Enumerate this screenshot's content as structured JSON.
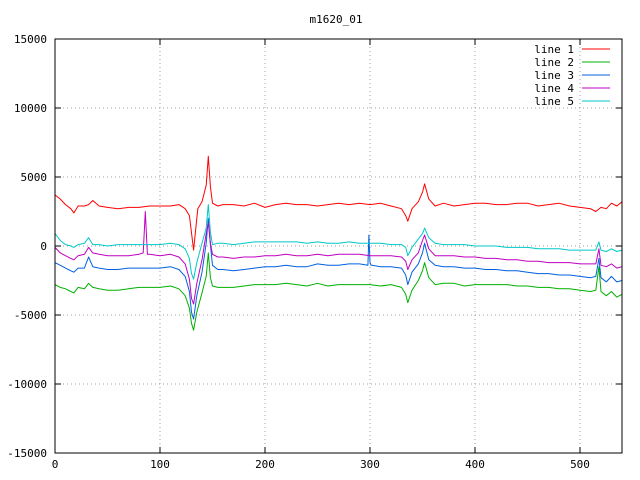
{
  "chart_data": {
    "type": "line",
    "title": "m1620_01",
    "xlabel": "",
    "ylabel": "",
    "xlim": [
      0,
      540
    ],
    "ylim": [
      -15000,
      15000
    ],
    "xticks": [
      0,
      100,
      200,
      300,
      400,
      500
    ],
    "yticks": [
      -15000,
      -10000,
      -5000,
      0,
      5000,
      10000,
      15000
    ],
    "grid": true,
    "legend_position": "top-right",
    "series": [
      {
        "name": "line 1",
        "color": "#ff0000",
        "x": [
          0,
          5,
          10,
          15,
          18,
          22,
          28,
          32,
          36,
          42,
          50,
          60,
          70,
          80,
          90,
          100,
          110,
          118,
          124,
          128,
          132,
          136,
          140,
          144,
          146,
          148,
          150,
          155,
          160,
          170,
          180,
          190,
          200,
          210,
          220,
          230,
          240,
          250,
          260,
          270,
          280,
          290,
          300,
          310,
          320,
          330,
          334,
          336,
          340,
          346,
          350,
          352,
          356,
          362,
          370,
          380,
          390,
          400,
          410,
          420,
          430,
          440,
          450,
          460,
          470,
          480,
          490,
          500,
          510,
          515,
          520,
          525,
          530,
          535,
          540
        ],
        "values": [
          3700,
          3400,
          3000,
          2700,
          2400,
          2900,
          2900,
          3000,
          3300,
          2900,
          2800,
          2700,
          2800,
          2800,
          2900,
          2900,
          2900,
          3000,
          2700,
          2200,
          -300,
          2700,
          3200,
          4400,
          6500,
          4300,
          3100,
          2900,
          3000,
          3000,
          2900,
          3100,
          2800,
          3000,
          3100,
          3000,
          3000,
          2900,
          3000,
          3100,
          3000,
          3100,
          3000,
          3100,
          2900,
          2700,
          2200,
          1800,
          2700,
          3200,
          3900,
          4500,
          3400,
          2900,
          3100,
          2900,
          3000,
          3100,
          3100,
          3000,
          3000,
          3100,
          3100,
          2900,
          3000,
          3100,
          2900,
          2800,
          2700,
          2500,
          2800,
          2700,
          3100,
          2900,
          3200
        ]
      },
      {
        "name": "line 2",
        "color": "#00b000",
        "x": [
          0,
          5,
          10,
          15,
          18,
          22,
          28,
          32,
          36,
          42,
          50,
          60,
          70,
          80,
          90,
          100,
          110,
          118,
          124,
          128,
          130,
          132,
          135,
          140,
          144,
          146,
          148,
          150,
          155,
          160,
          170,
          180,
          190,
          200,
          210,
          220,
          230,
          240,
          250,
          260,
          270,
          280,
          290,
          300,
          310,
          320,
          330,
          334,
          336,
          340,
          346,
          350,
          352,
          356,
          362,
          370,
          380,
          390,
          400,
          410,
          420,
          430,
          440,
          450,
          460,
          470,
          480,
          490,
          500,
          510,
          515,
          518,
          520,
          525,
          530,
          535,
          540
        ],
        "values": [
          -2800,
          -3000,
          -3100,
          -3300,
          -3400,
          -3000,
          -3100,
          -2700,
          -3000,
          -3100,
          -3200,
          -3200,
          -3100,
          -3000,
          -3000,
          -3000,
          -2900,
          -3100,
          -3600,
          -4500,
          -5600,
          -6100,
          -4800,
          -3400,
          -2200,
          -500,
          -2300,
          -2900,
          -3000,
          -3000,
          -3000,
          -2900,
          -2800,
          -2800,
          -2800,
          -2700,
          -2800,
          -2900,
          -2700,
          -2900,
          -2800,
          -2800,
          -2800,
          -2800,
          -2900,
          -2800,
          -3000,
          -3500,
          -4100,
          -3200,
          -2500,
          -1800,
          -1200,
          -2300,
          -2800,
          -2700,
          -2700,
          -2900,
          -2800,
          -2800,
          -2800,
          -2800,
          -2900,
          -2900,
          -3000,
          -3000,
          -3100,
          -3100,
          -3200,
          -3300,
          -3200,
          -1500,
          -3300,
          -3600,
          -3300,
          -3700,
          -3500
        ]
      },
      {
        "name": "line 3",
        "color": "#0060e0",
        "x": [
          0,
          5,
          10,
          15,
          18,
          22,
          28,
          32,
          36,
          42,
          50,
          60,
          70,
          80,
          90,
          100,
          110,
          118,
          124,
          128,
          130,
          132,
          135,
          140,
          144,
          146,
          148,
          150,
          155,
          160,
          170,
          180,
          190,
          200,
          210,
          220,
          230,
          240,
          250,
          260,
          270,
          280,
          290,
          298,
          299,
          300,
          301,
          302,
          310,
          320,
          330,
          334,
          336,
          340,
          346,
          350,
          352,
          356,
          362,
          370,
          380,
          390,
          400,
          410,
          420,
          430,
          440,
          450,
          460,
          470,
          480,
          490,
          500,
          510,
          515,
          518,
          520,
          525,
          530,
          535,
          540
        ],
        "values": [
          -1200,
          -1400,
          -1600,
          -1800,
          -1900,
          -1600,
          -1600,
          -800,
          -1500,
          -1600,
          -1700,
          -1700,
          -1600,
          -1600,
          -1600,
          -1600,
          -1500,
          -1700,
          -2200,
          -3300,
          -4800,
          -5300,
          -3600,
          -1900,
          200,
          2000,
          100,
          -1400,
          -1700,
          -1700,
          -1800,
          -1700,
          -1600,
          -1500,
          -1500,
          -1400,
          -1500,
          -1500,
          -1300,
          -1400,
          -1400,
          -1300,
          -1300,
          -1400,
          800,
          -1200,
          -1400,
          -1400,
          -1500,
          -1500,
          -1600,
          -2100,
          -2800,
          -1900,
          -1300,
          -500,
          200,
          -1000,
          -1400,
          -1500,
          -1500,
          -1600,
          -1600,
          -1700,
          -1700,
          -1800,
          -1800,
          -1900,
          -2000,
          -2000,
          -2100,
          -2100,
          -2200,
          -2300,
          -2200,
          -900,
          -2300,
          -2600,
          -2200,
          -2600,
          -2500
        ]
      },
      {
        "name": "line 4",
        "color": "#c000c0",
        "x": [
          0,
          5,
          10,
          15,
          18,
          22,
          28,
          32,
          36,
          42,
          50,
          60,
          70,
          80,
          84,
          86,
          88,
          90,
          100,
          110,
          118,
          124,
          128,
          130,
          132,
          135,
          140,
          144,
          146,
          148,
          150,
          155,
          160,
          170,
          180,
          190,
          200,
          210,
          220,
          230,
          240,
          250,
          260,
          270,
          280,
          290,
          300,
          310,
          320,
          330,
          334,
          336,
          340,
          346,
          350,
          352,
          356,
          362,
          370,
          380,
          390,
          400,
          410,
          420,
          430,
          440,
          450,
          460,
          470,
          480,
          490,
          500,
          510,
          515,
          518,
          520,
          525,
          530,
          535,
          540
        ],
        "values": [
          -100,
          -500,
          -700,
          -900,
          -1000,
          -700,
          -600,
          -100,
          -500,
          -600,
          -700,
          -700,
          -700,
          -600,
          -500,
          2500,
          -600,
          -600,
          -700,
          -600,
          -800,
          -1300,
          -2400,
          -3800,
          -4200,
          -2700,
          -1000,
          900,
          1700,
          200,
          -600,
          -800,
          -800,
          -900,
          -800,
          -800,
          -700,
          -700,
          -600,
          -700,
          -700,
          -600,
          -700,
          -600,
          -600,
          -600,
          -700,
          -700,
          -700,
          -800,
          -1100,
          -1700,
          -1000,
          -500,
          400,
          800,
          -200,
          -700,
          -700,
          -700,
          -800,
          -800,
          -900,
          -900,
          -1000,
          -1000,
          -1100,
          -1100,
          -1200,
          -1200,
          -1200,
          -1300,
          -1300,
          -1300,
          -200,
          -1400,
          -1500,
          -1300,
          -1600,
          -1500
        ]
      },
      {
        "name": "line 5",
        "color": "#00c8c8",
        "x": [
          0,
          5,
          10,
          15,
          18,
          22,
          28,
          32,
          36,
          42,
          50,
          60,
          70,
          80,
          90,
          100,
          110,
          118,
          124,
          128,
          130,
          132,
          135,
          140,
          144,
          146,
          148,
          150,
          155,
          160,
          170,
          180,
          190,
          200,
          210,
          220,
          230,
          240,
          250,
          260,
          270,
          280,
          290,
          300,
          310,
          320,
          330,
          334,
          336,
          340,
          346,
          350,
          352,
          356,
          362,
          370,
          380,
          390,
          400,
          410,
          420,
          430,
          440,
          450,
          460,
          470,
          480,
          490,
          500,
          510,
          515,
          518,
          520,
          525,
          530,
          535,
          540
        ],
        "values": [
          900,
          400,
          100,
          0,
          -100,
          100,
          200,
          600,
          100,
          100,
          0,
          100,
          100,
          100,
          100,
          100,
          200,
          100,
          -200,
          -900,
          -2000,
          -2400,
          -1200,
          200,
          1300,
          3000,
          1000,
          100,
          200,
          200,
          100,
          200,
          300,
          300,
          300,
          300,
          300,
          200,
          300,
          200,
          200,
          300,
          200,
          200,
          200,
          100,
          100,
          -100,
          -700,
          -100,
          500,
          900,
          1300,
          600,
          200,
          100,
          100,
          100,
          0,
          0,
          0,
          -100,
          -100,
          -100,
          -200,
          -200,
          -200,
          -300,
          -300,
          -300,
          -300,
          300,
          -300,
          -400,
          -200,
          -400,
          -300
        ]
      }
    ]
  }
}
